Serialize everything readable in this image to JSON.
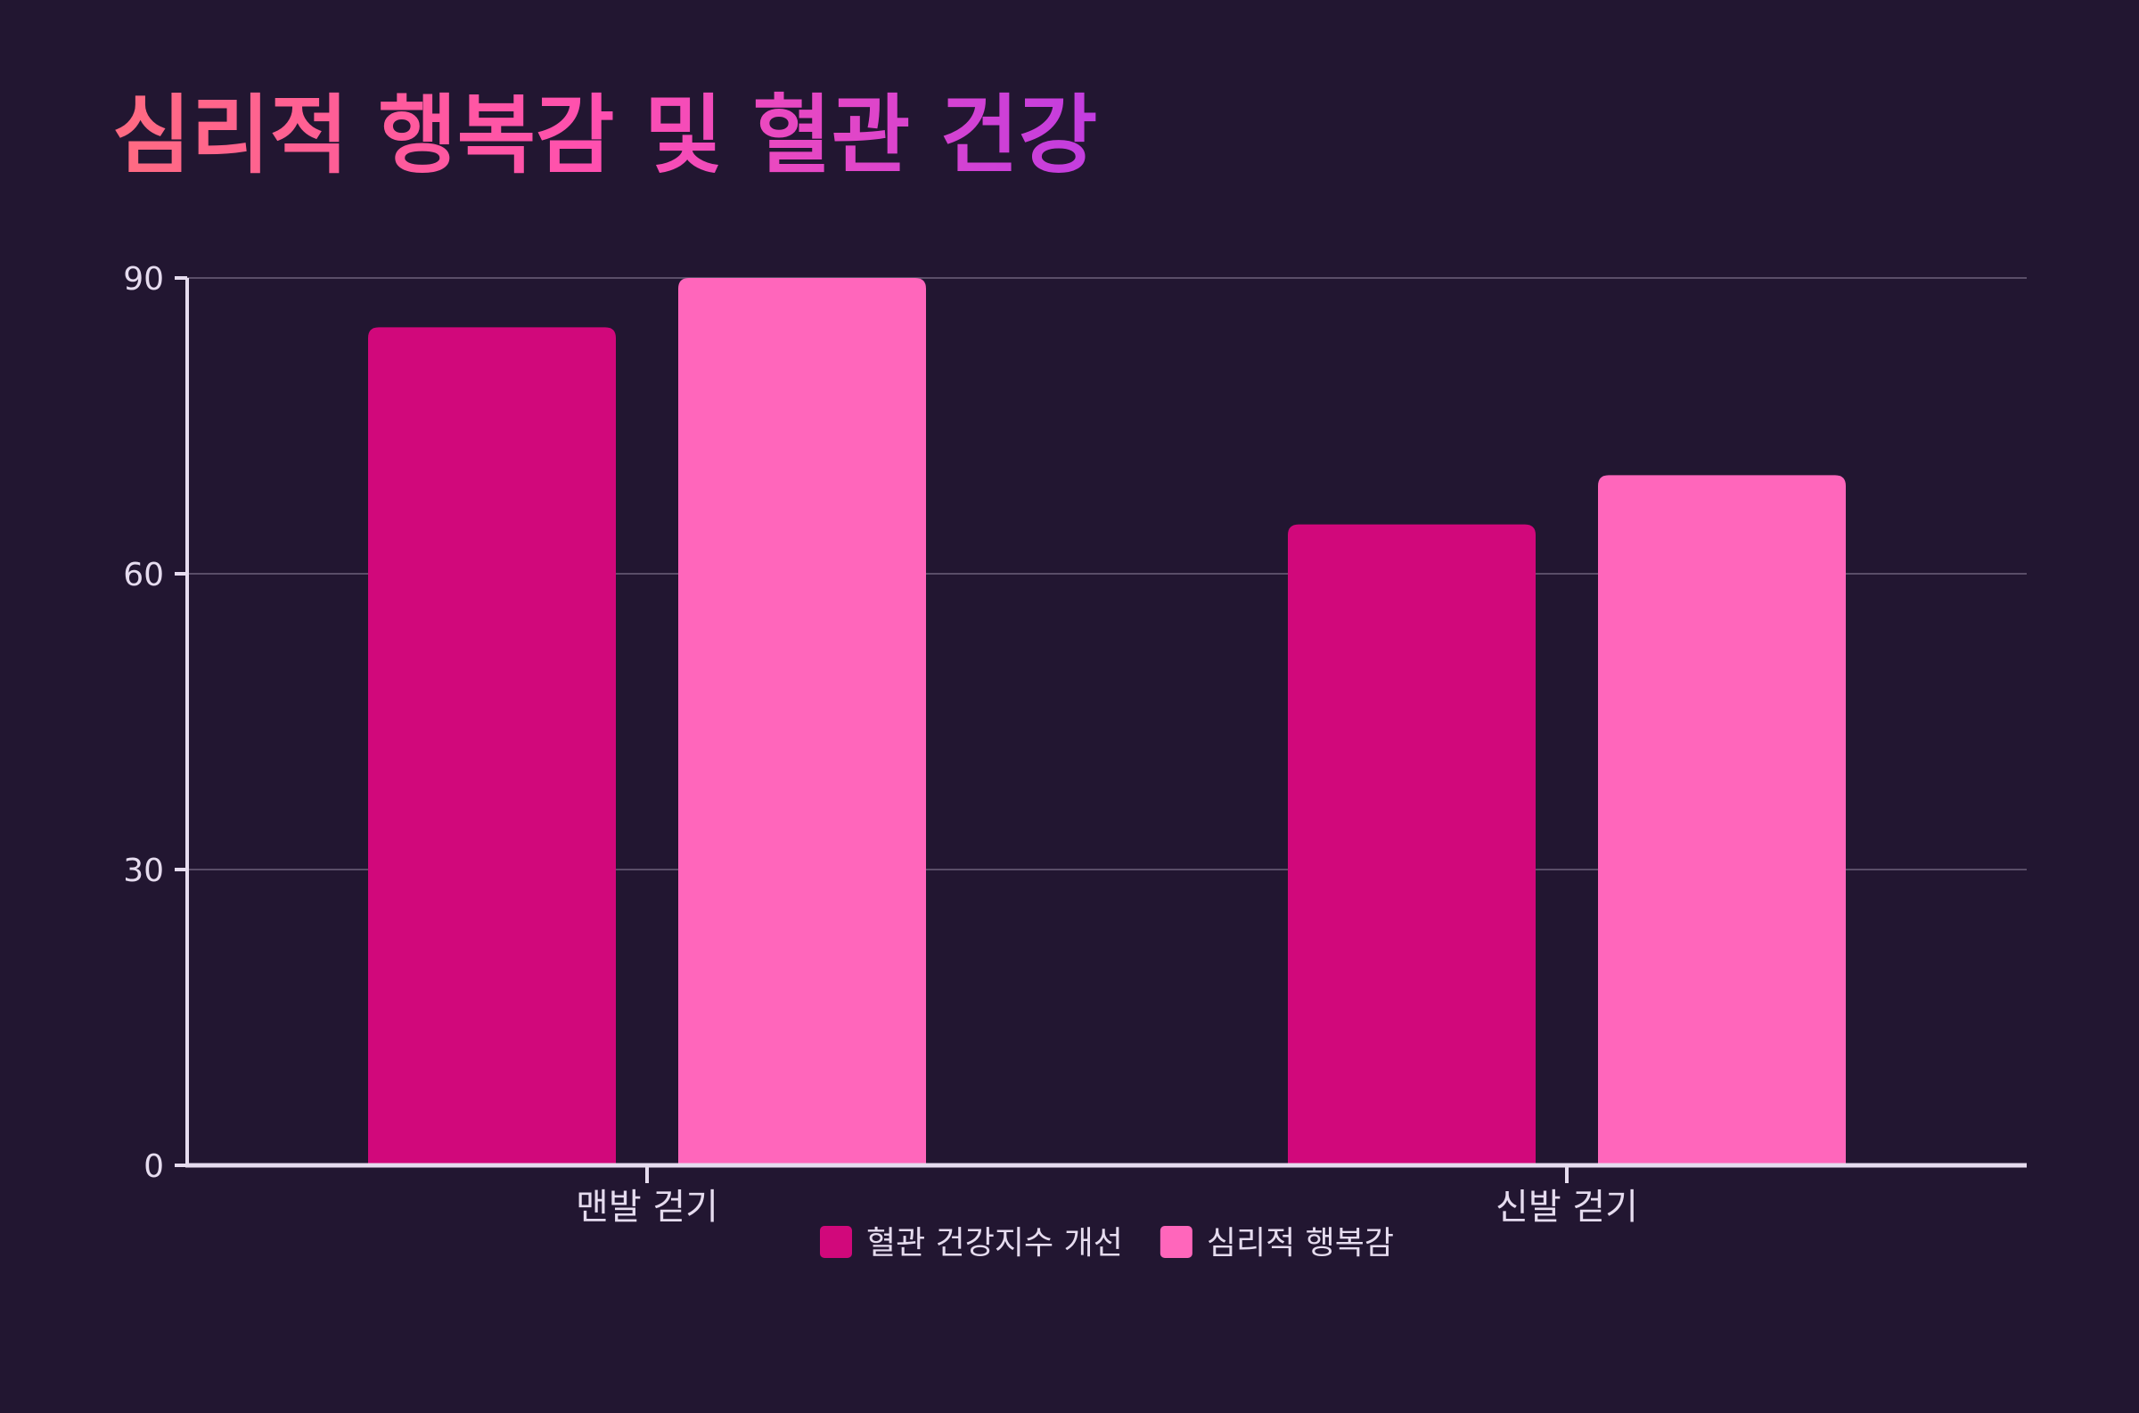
{
  "colors": {
    "background": "#221631",
    "title_gradient_start": "#ff6b81",
    "title_gradient_mid": "#ff4fb0",
    "title_gradient_end": "#c23de0",
    "axis": "#e6dcef",
    "grid": "#5a4e68",
    "text": "#e6dcef"
  },
  "chart_data": {
    "type": "bar",
    "title": "심리적 행복감 및 혈관 건강",
    "xlabel": "",
    "ylabel": "",
    "categories": [
      "맨발 걷기",
      "신발 걷기"
    ],
    "series": [
      {
        "name": "혈관 건강지수 개선",
        "values": [
          85,
          65
        ],
        "color": "#d1087b"
      },
      {
        "name": "심리적 행복감",
        "values": [
          90,
          70
        ],
        "color": "#ff66bb"
      }
    ],
    "ylim": [
      0,
      90
    ],
    "yticks": [
      0,
      30,
      60,
      90
    ],
    "grid": true,
    "legend_position": "bottom-center"
  }
}
